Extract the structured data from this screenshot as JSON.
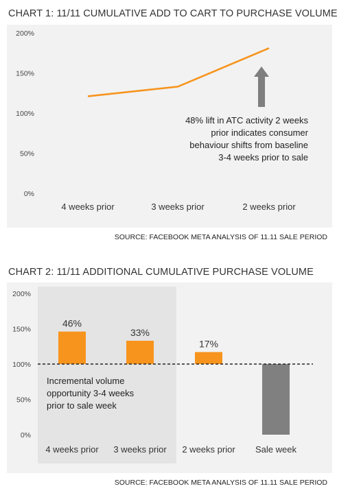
{
  "chart_data": [
    {
      "type": "line",
      "title": "CHART 1: 11/11  CUMULATIVE ADD TO CART TO PURCHASE VOLUME",
      "categories": [
        "4 weeks prior",
        "3 weeks prior",
        "2 weeks prior"
      ],
      "yticks": [
        "0%",
        "50%",
        "100%",
        "150%",
        "200%"
      ],
      "ylim": [
        0,
        200
      ],
      "series": [
        {
          "values": [
            121,
            133,
            181
          ],
          "color": "#f7941d"
        }
      ],
      "annotation": "48%  lift in ATC activity 2 weeks prior indicates consumer behaviour shifts from baseline 3-4 weeks prior to sale",
      "annotation_lines": [
        "48%  lift in ATC activity 2 weeks",
        "prior indicates consumer",
        "behaviour shifts from baseline",
        "3-4 weeks prior to sale"
      ],
      "arrow_color": "#7f7f7f",
      "grid": false,
      "source": "SOURCE: FACEBOOK META ANALYSIS OF 11.11 SALE PERIOD"
    },
    {
      "type": "bar",
      "title": "CHART 2: 11/11 ADDITIONAL CUMULATIVE PURCHASE VOLUME",
      "categories": [
        "4 weeks prior",
        "3 weeks prior",
        "2 weeks prior",
        "Sale week"
      ],
      "yticks": [
        "0%",
        "50%",
        "100%",
        "150%",
        "200%"
      ],
      "ylim": [
        0,
        200
      ],
      "values": [
        146,
        133,
        117,
        0
      ],
      "data_labels": [
        "46%",
        "33%",
        "17%",
        ""
      ],
      "baseline": 100,
      "bar_colors": [
        "#f7941d",
        "#f7941d",
        "#f7941d",
        "#808080"
      ],
      "highlight_categories": [
        "4 weeks prior",
        "3 weeks prior"
      ],
      "annotation": "Incremental volume opportunity 3-4 weeks prior to sale week",
      "annotation_lines": [
        "Incremental volume",
        "opportunity 3-4 weeks",
        "prior to sale week"
      ],
      "grid": false,
      "source": "SOURCE: FACEBOOK META ANALYSIS OF 11.11 SALE PERIOD"
    }
  ]
}
